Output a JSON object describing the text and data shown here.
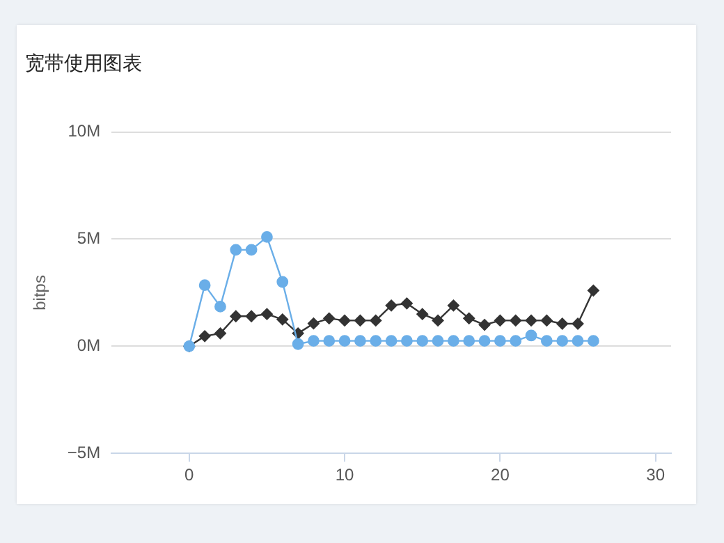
{
  "chart_data": {
    "type": "line",
    "title": "宽带使用图表",
    "ylabel": "bitps",
    "x": [
      0,
      1,
      2,
      3,
      4,
      5,
      6,
      7,
      8,
      9,
      10,
      11,
      12,
      13,
      14,
      15,
      16,
      17,
      18,
      19,
      20,
      21,
      22,
      23,
      24,
      25,
      26
    ],
    "series": [
      {
        "color": "#6aaee8",
        "marker": "circle",
        "values": [
          0,
          2.85,
          1.85,
          4.5,
          4.5,
          5.1,
          3.0,
          0.1,
          0.25,
          0.25,
          0.25,
          0.25,
          0.25,
          0.25,
          0.25,
          0.25,
          0.25,
          0.25,
          0.25,
          0.25,
          0.25,
          0.25,
          0.5,
          0.25,
          0.25,
          0.25,
          0.25
        ]
      },
      {
        "color": "#333333",
        "marker": "diamond",
        "values": [
          0,
          0.47,
          0.6,
          1.4,
          1.4,
          1.5,
          1.25,
          0.6,
          1.06,
          1.3,
          1.2,
          1.2,
          1.2,
          1.9,
          2.0,
          1.5,
          1.2,
          1.9,
          1.3,
          1.0,
          1.2,
          1.2,
          1.2,
          1.2,
          1.05,
          1.05,
          2.6
        ]
      }
    ],
    "xlim": [
      -5,
      31
    ],
    "xticks": [
      0,
      10,
      20,
      30
    ],
    "ylim": [
      -5,
      10
    ],
    "yticks": [
      {
        "value": -5,
        "label": "−5M"
      },
      {
        "value": 0,
        "label": "0M"
      },
      {
        "value": 5,
        "label": "5M"
      },
      {
        "value": 10,
        "label": "10M"
      }
    ],
    "grid": "y",
    "line_style": "solid",
    "legend": false
  }
}
